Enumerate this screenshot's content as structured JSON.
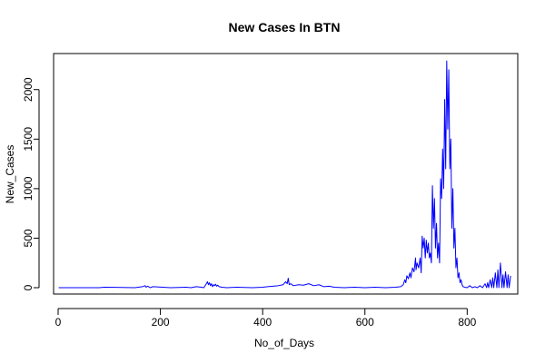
{
  "chart_data": {
    "type": "line",
    "title": "New Cases In BTN",
    "xlabel": "No_of_Days",
    "ylabel": "New_Cases",
    "xlim": [
      0,
      890
    ],
    "ylim": [
      0,
      2300
    ],
    "x_ticks": [
      0,
      200,
      400,
      600,
      800
    ],
    "y_ticks": [
      0,
      500,
      1000,
      1500,
      2000
    ],
    "grid": false,
    "series": [
      {
        "color": "#0000ff",
        "x": [
          1,
          80,
          90,
          150,
          165,
          170,
          172,
          175,
          180,
          185,
          220,
          250,
          260,
          270,
          280,
          285,
          290,
          292,
          294,
          296,
          298,
          300,
          302,
          304,
          306,
          308,
          310,
          312,
          315,
          320,
          330,
          350,
          380,
          400,
          410,
          420,
          430,
          440,
          445,
          448,
          450,
          452,
          455,
          460,
          470,
          480,
          490,
          500,
          510,
          520,
          530,
          540,
          560,
          580,
          600,
          620,
          640,
          660,
          670,
          675,
          678,
          680,
          682,
          685,
          688,
          690,
          693,
          696,
          699,
          700,
          702,
          705,
          708,
          710,
          712,
          714,
          716,
          718,
          720,
          722,
          724,
          726,
          728,
          730,
          732,
          734,
          736,
          738,
          740,
          742,
          744,
          746,
          748,
          750,
          752,
          754,
          756,
          758,
          760,
          762,
          764,
          766,
          768,
          770,
          772,
          774,
          776,
          778,
          780,
          782,
          784,
          786,
          788,
          790,
          792,
          795,
          800,
          805,
          810,
          815,
          820,
          825,
          830,
          835,
          838,
          840,
          842,
          845,
          848,
          850,
          852,
          855,
          858,
          860,
          862,
          865,
          868,
          870,
          872,
          875,
          878,
          880,
          882,
          885
        ],
        "values": [
          0,
          0,
          5,
          0,
          10,
          20,
          5,
          15,
          0,
          10,
          0,
          5,
          0,
          10,
          5,
          0,
          40,
          60,
          30,
          50,
          20,
          40,
          10,
          30,
          20,
          35,
          15,
          25,
          10,
          5,
          0,
          5,
          0,
          5,
          10,
          15,
          20,
          30,
          60,
          40,
          95,
          30,
          40,
          20,
          30,
          25,
          40,
          20,
          30,
          10,
          15,
          5,
          0,
          5,
          0,
          5,
          0,
          5,
          10,
          30,
          80,
          50,
          120,
          90,
          150,
          100,
          200,
          160,
          300,
          180,
          250,
          200,
          300,
          150,
          520,
          400,
          500,
          300,
          480,
          350,
          450,
          300,
          350,
          250,
          1030,
          600,
          900,
          400,
          650,
          300,
          450,
          250,
          1100,
          900,
          1400,
          1000,
          1900,
          1200,
          2290,
          1600,
          2200,
          1200,
          1500,
          600,
          1000,
          400,
          600,
          200,
          300,
          100,
          150,
          50,
          80,
          30,
          10,
          5,
          0,
          20,
          0,
          10,
          0,
          20,
          0,
          40,
          0,
          50,
          0,
          80,
          0,
          100,
          0,
          150,
          0,
          180,
          0,
          250,
          0,
          130,
          0,
          160,
          0,
          130,
          0,
          120
        ]
      }
    ]
  }
}
